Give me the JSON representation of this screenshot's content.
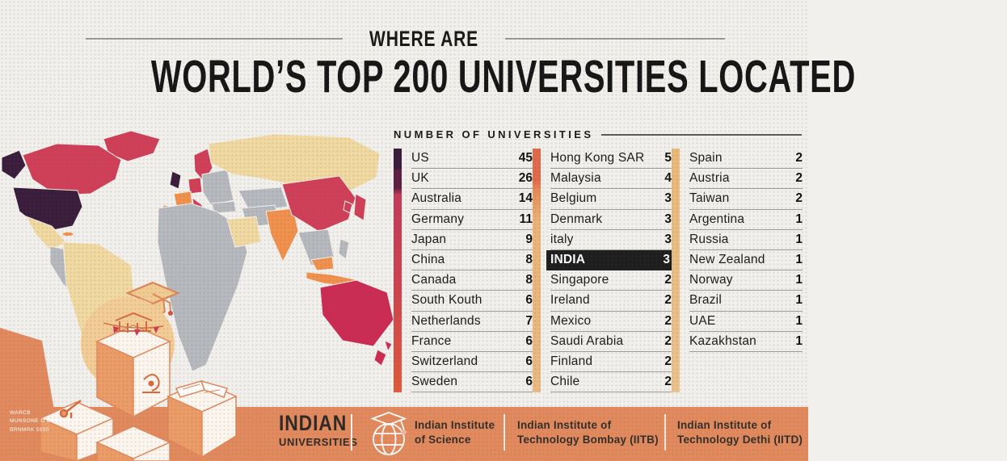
{
  "title": {
    "eyebrow": "WHERE ARE",
    "main": "WORLD’S TOP 200 UNIVERSITIES LOCATED"
  },
  "table": {
    "header": "NUMBER OF UNIVERSITIES",
    "columns": [
      {
        "rows": [
          {
            "country": "US",
            "value": "45"
          },
          {
            "country": "UK",
            "value": "26"
          },
          {
            "country": "Australia",
            "value": "14"
          },
          {
            "country": "Germany",
            "value": "11"
          },
          {
            "country": "Japan",
            "value": "9"
          },
          {
            "country": "China",
            "value": "8"
          },
          {
            "country": "Canada",
            "value": "8"
          },
          {
            "country": "South Kouth",
            "value": "6"
          },
          {
            "country": "Netherlands",
            "value": "7"
          },
          {
            "country": "France",
            "value": "6"
          },
          {
            "country": "Switzerland",
            "value": "6"
          },
          {
            "country": "Sweden",
            "value": "6"
          }
        ]
      },
      {
        "rows": [
          {
            "country": "Hong Kong SAR",
            "value": "5"
          },
          {
            "country": "Malaysia",
            "value": "4"
          },
          {
            "country": "Belgium",
            "value": "3"
          },
          {
            "country": "Denmark",
            "value": "3"
          },
          {
            "country": "italy",
            "value": "3"
          },
          {
            "country": "INDIA",
            "value": "3",
            "highlight": true
          },
          {
            "country": "Singapore",
            "value": "2"
          },
          {
            "country": "Ireland",
            "value": "2"
          },
          {
            "country": "Mexico",
            "value": "2"
          },
          {
            "country": "Saudi Arabia",
            "value": "2"
          },
          {
            "country": "Finland",
            "value": "2"
          },
          {
            "country": "Chile",
            "value": "2"
          }
        ]
      },
      {
        "rows": [
          {
            "country": "Spain",
            "value": "2"
          },
          {
            "country": "Austria",
            "value": "2"
          },
          {
            "country": "Taiwan",
            "value": "2"
          },
          {
            "country": "Argentina",
            "value": "1"
          },
          {
            "country": "Russia",
            "value": "1"
          },
          {
            "country": "New Zealand",
            "value": "1"
          },
          {
            "country": "Norway",
            "value": "1"
          },
          {
            "country": "Brazil",
            "value": "1"
          },
          {
            "country": "UAE",
            "value": "1"
          },
          {
            "country": "Kazakhstan",
            "value": "1"
          }
        ]
      }
    ]
  },
  "source_note": {
    "line1": "WARCB",
    "line2": "MUNSONE O ENRAMZATY",
    "line3": "BRNMRK 5000"
  },
  "footer": {
    "brand": {
      "line1": "INDIAN",
      "line2": "UNIVERSITIES"
    },
    "items": [
      {
        "line1": "Indian Institute",
        "line2": "of Science"
      },
      {
        "line1": "Indian Institute of",
        "line2": "Technology Bombay (IITB)"
      },
      {
        "line1": "Indian Institute of",
        "line2": "Technology Dethi (IITD)"
      }
    ]
  },
  "colors": {
    "background": "#f2f0ec",
    "title_text": "#161616",
    "map_purple": "#3a1d3c",
    "map_crimson": "#d03f58",
    "map_orange": "#f0914e",
    "map_wheat": "#f1d9a2",
    "map_gray": "#b6b9be",
    "footer_orange": "#e28a5e",
    "highlight_row_bg": "#1e1e1e"
  },
  "chart_data": {
    "type": "table",
    "title": "WHERE ARE WORLD’S TOP 200 UNIVERSITIES LOCATED",
    "value_label": "NUMBER OF UNIVERSITIES",
    "highlighted_row": "INDIA",
    "rows": [
      [
        "US",
        45
      ],
      [
        "UK",
        26
      ],
      [
        "Australia",
        14
      ],
      [
        "Germany",
        11
      ],
      [
        "Japan",
        9
      ],
      [
        "China",
        8
      ],
      [
        "Canada",
        8
      ],
      [
        "South Kouth",
        6
      ],
      [
        "Netherlands",
        7
      ],
      [
        "France",
        6
      ],
      [
        "Switzerland",
        6
      ],
      [
        "Sweden",
        6
      ],
      [
        "Hong Kong SAR",
        5
      ],
      [
        "Malaysia",
        4
      ],
      [
        "Belgium",
        3
      ],
      [
        "Denmark",
        3
      ],
      [
        "italy",
        3
      ],
      [
        "INDIA",
        3
      ],
      [
        "Singapore",
        2
      ],
      [
        "Ireland",
        2
      ],
      [
        "Mexico",
        2
      ],
      [
        "Saudi Arabia",
        2
      ],
      [
        "Finland",
        2
      ],
      [
        "Chile",
        2
      ],
      [
        "Spain",
        2
      ],
      [
        "Austria",
        2
      ],
      [
        "Taiwan",
        2
      ],
      [
        "Argentina",
        1
      ],
      [
        "Russia",
        1
      ],
      [
        "New Zealand",
        1
      ],
      [
        "Norway",
        1
      ],
      [
        "Brazil",
        1
      ],
      [
        "UAE",
        1
      ],
      [
        "Kazakhstan",
        1
      ]
    ]
  }
}
